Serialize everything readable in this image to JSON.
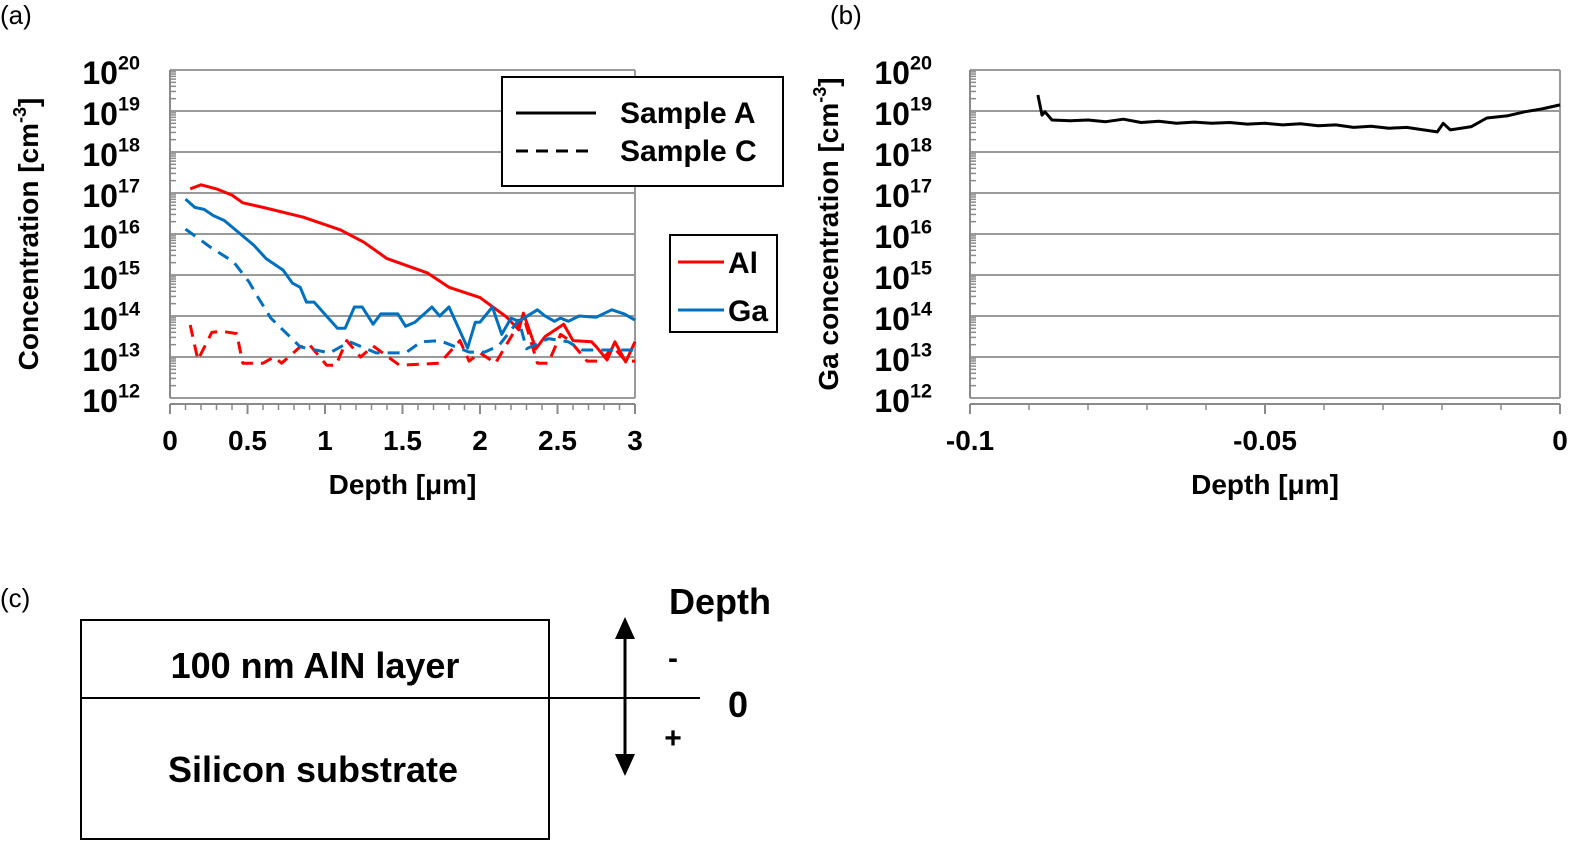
{
  "chart_data": [
    {
      "panel": "(a)",
      "type": "line",
      "xlabel": "Depth [μm]",
      "ylabel": {
        "text": "Concentration [cm",
        "sup": "-3",
        "close": "]"
      },
      "xlim": [
        0,
        3
      ],
      "ylim_exponent": [
        12,
        20
      ],
      "yscale": "log",
      "grid": true,
      "xticks": [
        "0",
        "0.5",
        "1",
        "1.5",
        "2",
        "2.5",
        "3"
      ],
      "xtick_values": [
        0,
        0.5,
        1,
        1.5,
        2,
        2.5,
        3
      ],
      "yticks": [
        {
          "base": "10",
          "exp": "20"
        },
        {
          "base": "10",
          "exp": "19"
        },
        {
          "base": "10",
          "exp": "18"
        },
        {
          "base": "10",
          "exp": "17"
        },
        {
          "base": "10",
          "exp": "16"
        },
        {
          "base": "10",
          "exp": "15"
        },
        {
          "base": "10",
          "exp": "14"
        },
        {
          "base": "10",
          "exp": "13"
        },
        {
          "base": "10",
          "exp": "12"
        }
      ],
      "legend_style": {
        "position": "top-right",
        "entries": [
          {
            "label": "Sample A",
            "dash": "solid"
          },
          {
            "label": "Sample C",
            "dash": "dashed"
          }
        ]
      },
      "legend_element": {
        "position": "right",
        "entries": [
          {
            "label": "Al",
            "color": "#ff0000"
          },
          {
            "label": "Ga",
            "color": "#0070c0"
          }
        ]
      },
      "series": [
        {
          "name": "Al Sample A",
          "color": "#ff0000",
          "dash": "solid",
          "x": [
            0.13,
            0.2,
            0.3,
            0.4,
            0.47,
            0.6,
            0.86,
            1.1,
            1.25,
            1.4,
            1.66,
            1.8,
            2.0,
            2.17,
            2.25,
            2.28,
            2.36,
            2.42,
            2.54,
            2.6,
            2.72,
            2.75,
            2.82,
            2.87,
            2.94,
            3.0
          ],
          "y_exponent": [
            17.1,
            17.2,
            17.1,
            16.95,
            16.76,
            16.65,
            16.41,
            16.1,
            15.8,
            15.4,
            15.05,
            14.7,
            14.45,
            13.98,
            13.66,
            14.07,
            13.2,
            13.5,
            13.8,
            13.4,
            13.37,
            13.25,
            12.93,
            13.37,
            12.88,
            13.37
          ]
        },
        {
          "name": "Al Sample C",
          "color": "#ff0000",
          "dash": "dashed",
          "x": [
            0.13,
            0.18,
            0.27,
            0.33,
            0.43,
            0.47,
            0.6,
            0.67,
            0.72,
            0.84,
            0.9,
            1.01,
            1.07,
            1.14,
            1.23,
            1.31,
            1.48,
            1.74,
            1.87,
            1.93,
            2.0,
            2.1,
            2.28,
            2.37,
            2.44,
            2.52,
            2.58,
            2.69,
            2.78,
            2.86,
            2.94,
            3.0
          ],
          "y_exponent": [
            13.78,
            12.93,
            13.6,
            13.63,
            13.57,
            12.85,
            12.85,
            13.0,
            12.85,
            13.25,
            13.3,
            12.8,
            12.8,
            13.4,
            13.0,
            13.27,
            12.8,
            12.85,
            13.4,
            12.9,
            13.1,
            12.85,
            14.0,
            12.85,
            12.85,
            13.55,
            13.4,
            12.9,
            12.9,
            13.25,
            12.9,
            12.9
          ]
        },
        {
          "name": "Ga Sample A",
          "color": "#0070c0",
          "dash": "solid",
          "x": [
            0.1,
            0.16,
            0.22,
            0.28,
            0.35,
            0.54,
            0.62,
            0.73,
            0.79,
            0.84,
            0.88,
            0.93,
            1.08,
            1.13,
            1.19,
            1.24,
            1.31,
            1.36,
            1.41,
            1.47,
            1.52,
            1.58,
            1.69,
            1.74,
            1.8,
            1.92,
            1.97,
            2.0,
            2.08,
            2.14,
            2.2,
            2.25,
            2.37,
            2.42,
            2.48,
            2.52,
            2.57,
            2.64,
            2.75,
            2.85,
            2.93,
            3.0
          ],
          "y_exponent": [
            16.85,
            16.65,
            16.6,
            16.45,
            16.33,
            15.73,
            15.4,
            15.12,
            14.8,
            14.7,
            14.34,
            14.34,
            13.7,
            13.7,
            14.22,
            14.22,
            13.8,
            14.05,
            14.05,
            14.05,
            13.75,
            13.85,
            14.22,
            14.0,
            14.22,
            13.22,
            13.85,
            13.85,
            14.22,
            13.55,
            13.95,
            13.87,
            14.15,
            14.0,
            13.87,
            13.95,
            13.87,
            14.0,
            13.97,
            14.15,
            14.05,
            13.9
          ]
        },
        {
          "name": "Ga Sample C",
          "color": "#0070c0",
          "dash": "dashed",
          "x": [
            0.1,
            0.26,
            0.41,
            0.51,
            0.57,
            0.65,
            0.75,
            0.84,
            1.03,
            1.16,
            1.33,
            1.52,
            1.62,
            1.74,
            1.93,
            2.03,
            2.12,
            2.25,
            2.3,
            2.44,
            2.57,
            2.66,
            3.0
          ],
          "y_exponent": [
            16.12,
            15.68,
            15.32,
            14.83,
            14.44,
            13.95,
            13.58,
            13.25,
            13.1,
            13.37,
            13.1,
            13.1,
            13.37,
            13.4,
            13.12,
            13.12,
            13.27,
            13.9,
            13.2,
            13.45,
            13.37,
            13.17,
            13.17
          ]
        }
      ]
    },
    {
      "panel": "(b)",
      "type": "line",
      "xlabel": "Depth [μm]",
      "ylabel": {
        "text": "Ga concentration [cm",
        "sup": "-3",
        "close": "]"
      },
      "xlim": [
        -0.1,
        0
      ],
      "ylim_exponent": [
        12,
        20
      ],
      "yscale": "log",
      "grid": true,
      "xticks": [
        "-0.1",
        "-0.05",
        "0"
      ],
      "xtick_values": [
        -0.1,
        -0.05,
        0
      ],
      "yticks": [
        {
          "base": "10",
          "exp": "20"
        },
        {
          "base": "10",
          "exp": "19"
        },
        {
          "base": "10",
          "exp": "18"
        },
        {
          "base": "10",
          "exp": "17"
        },
        {
          "base": "10",
          "exp": "16"
        },
        {
          "base": "10",
          "exp": "15"
        },
        {
          "base": "10",
          "exp": "14"
        },
        {
          "base": "10",
          "exp": "13"
        },
        {
          "base": "10",
          "exp": "12"
        }
      ],
      "series": [
        {
          "name": "Ga",
          "color": "#000000",
          "dash": "solid",
          "x": [
            -0.0885,
            -0.0878,
            -0.0873,
            -0.0861,
            -0.083,
            -0.08,
            -0.077,
            -0.074,
            -0.071,
            -0.068,
            -0.065,
            -0.062,
            -0.059,
            -0.056,
            -0.053,
            -0.05,
            -0.047,
            -0.044,
            -0.041,
            -0.038,
            -0.035,
            -0.032,
            -0.029,
            -0.026,
            -0.0208,
            -0.0198,
            -0.0186,
            -0.015,
            -0.0124,
            -0.009,
            -0.006,
            -0.003,
            0
          ],
          "y_exponent": [
            19.39,
            18.9,
            18.98,
            18.78,
            18.76,
            18.78,
            18.74,
            18.8,
            18.72,
            18.75,
            18.7,
            18.73,
            18.7,
            18.72,
            18.68,
            18.7,
            18.66,
            18.69,
            18.64,
            18.66,
            18.6,
            18.63,
            18.58,
            18.6,
            18.49,
            18.7,
            18.54,
            18.62,
            18.83,
            18.88,
            18.98,
            19.05,
            19.15
          ]
        }
      ]
    }
  ],
  "panel_labels": {
    "a": "(a)",
    "b": "(b)",
    "c": "(c)"
  },
  "diagram_c": {
    "layer_top": "100 nm AlN layer",
    "layer_bottom": "Silicon substrate",
    "axis_label": "Depth",
    "minus": "-",
    "zero": "0",
    "plus": "+"
  }
}
